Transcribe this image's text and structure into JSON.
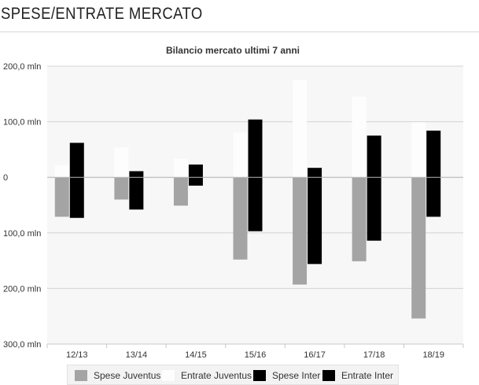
{
  "page": {
    "title": "SPESE/ENTRATE MERCATO"
  },
  "chart_data": {
    "type": "bar",
    "title": "Bilancio mercato ultimi 7 anni",
    "xlabel": "",
    "ylabel": "",
    "categories": [
      "12/13",
      "13/14",
      "14/15",
      "15/16",
      "16/17",
      "17/18",
      "18/19"
    ],
    "ylim": [
      -300,
      200
    ],
    "yticks": [
      200,
      100,
      0,
      -100,
      -200,
      -300
    ],
    "ytick_labels": [
      "200,0 mln",
      "100,0 mln",
      "0",
      "100,0 mln",
      "200,0 mln",
      "300,0 mln"
    ],
    "grid": true,
    "legend_position": "bottom",
    "series": [
      {
        "name": "Spese Juventus",
        "values": [
          -71,
          -40,
          -51,
          -148,
          -193,
          -151,
          -254
        ],
        "color": "#a4a4a4",
        "group": "juventus"
      },
      {
        "name": "Entrate Juventus",
        "values": [
          22,
          54,
          33,
          81,
          175,
          145,
          99
        ],
        "color": "#fdfdfd",
        "group": "juventus"
      },
      {
        "name": "Spese Inter",
        "values": [
          -73,
          -58,
          -15,
          -97,
          -156,
          -114,
          -71
        ],
        "color": "#000000",
        "group": "inter"
      },
      {
        "name": "Entrate Inter",
        "values": [
          62,
          11,
          23,
          104,
          17,
          75,
          84
        ],
        "color": "#000000",
        "group": "inter"
      }
    ]
  }
}
